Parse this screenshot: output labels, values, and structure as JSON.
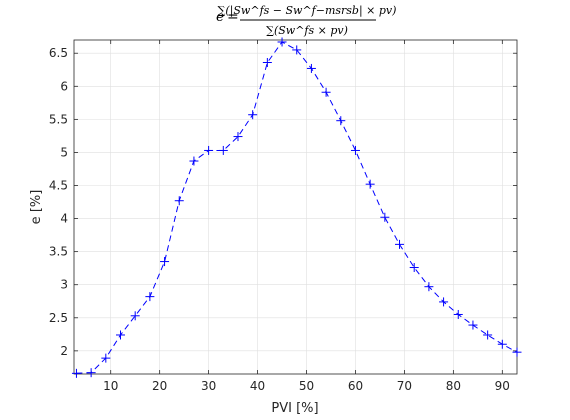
{
  "chart_data": {
    "type": "line",
    "title": {
      "lhs": "e",
      "equals": "=",
      "numerator": "∑(|Sw^fs − Sw^f−msrsb| × pv)",
      "denominator": "∑(Sw^fs × pv)"
    },
    "xlabel": "PVI [%]",
    "ylabel": "e [%]",
    "xlim": [
      2.5,
      93
    ],
    "ylim": [
      1.65,
      6.7
    ],
    "xticks": [
      10,
      20,
      30,
      40,
      50,
      60,
      70,
      80,
      90
    ],
    "yticks": [
      2,
      2.5,
      3,
      3.5,
      4,
      4.5,
      5,
      5.5,
      6,
      6.5
    ],
    "grid": true,
    "line_style": "dashed",
    "marker": "+",
    "color": "#0000ff",
    "series": [
      {
        "x": [
          3,
          6,
          9,
          12,
          15,
          18,
          21,
          24,
          27,
          30,
          33,
          36,
          39,
          42,
          45,
          48,
          51,
          54,
          57,
          60,
          63,
          66,
          69,
          72,
          75,
          78,
          81,
          84,
          87,
          90,
          93
        ],
        "y": [
          1.66,
          1.67,
          1.89,
          2.24,
          2.53,
          2.82,
          3.35,
          4.27,
          4.87,
          5.03,
          5.03,
          5.24,
          5.57,
          6.36,
          6.67,
          6.55,
          6.27,
          5.91,
          5.48,
          5.03,
          4.52,
          4.02,
          3.61,
          3.26,
          2.97,
          2.74,
          2.55,
          2.39,
          2.24,
          2.1,
          1.98
        ]
      }
    ]
  }
}
